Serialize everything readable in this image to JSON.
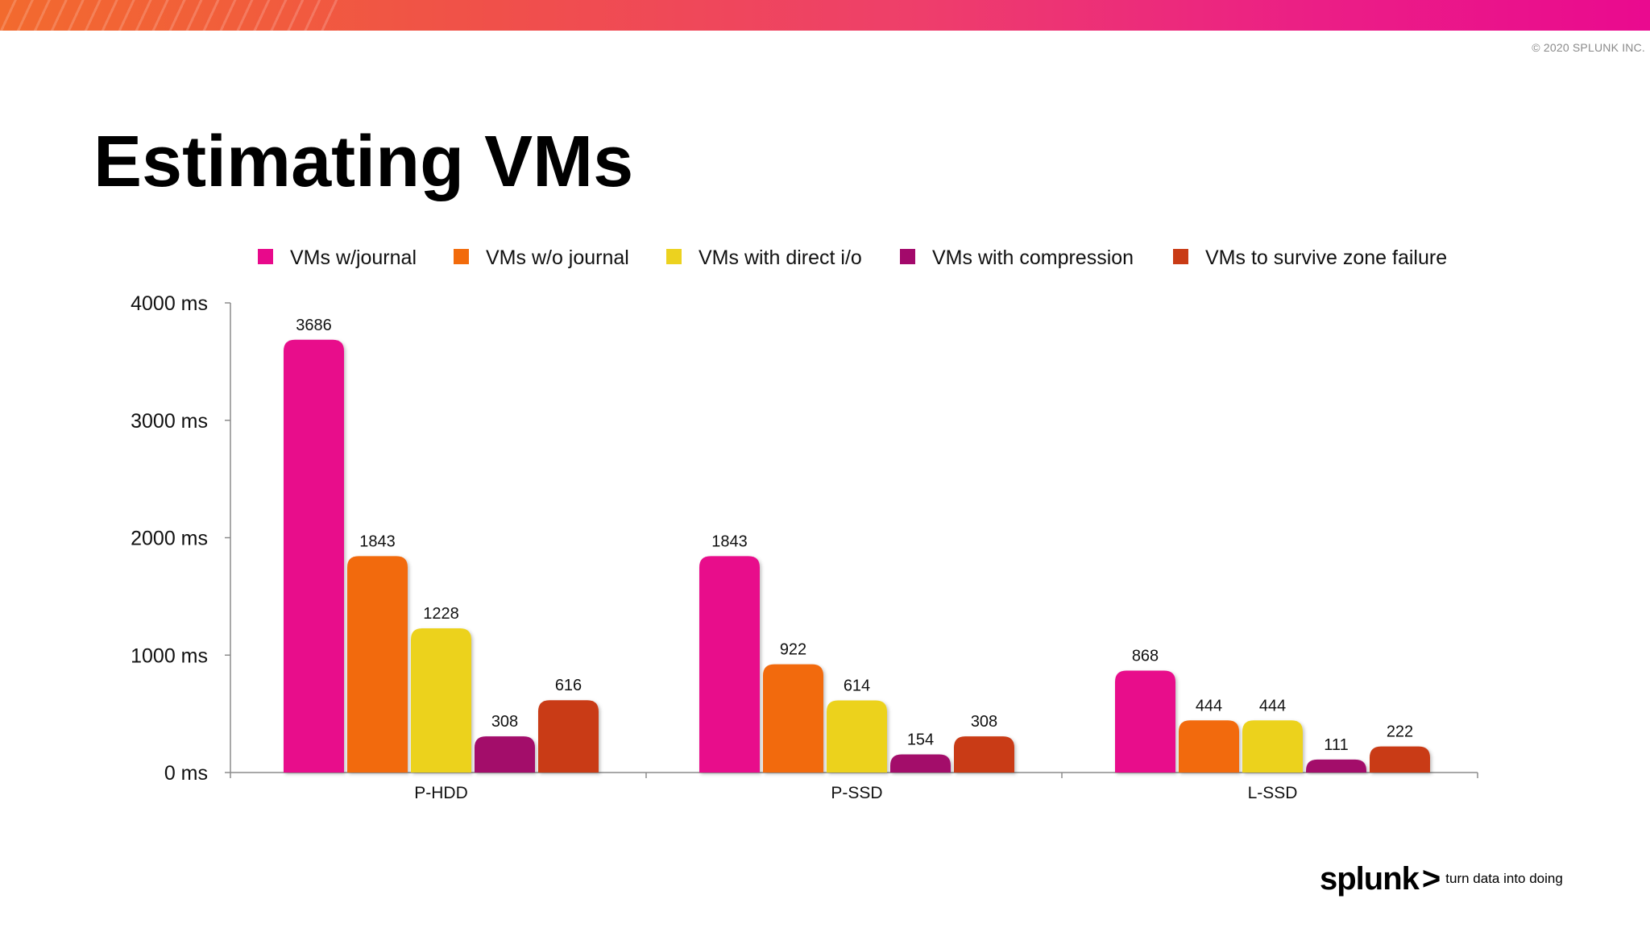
{
  "header": {
    "copyright": "© 2020 SPLUNK INC.",
    "title": "Estimating VMs"
  },
  "chart_data": {
    "type": "bar",
    "title": "",
    "xlabel": "",
    "ylabel": "",
    "ylim": [
      0,
      4000
    ],
    "yticks": [
      "0 ms",
      "1000 ms",
      "2000 ms",
      "3000 ms",
      "4000 ms"
    ],
    "ytick_values": [
      0,
      1000,
      2000,
      3000,
      4000
    ],
    "grid": false,
    "legend_position": "top",
    "categories": [
      "P-HDD",
      "P-SSD",
      "L-SSD"
    ],
    "series": [
      {
        "name": "VMs w/journal",
        "color": "#e8098b",
        "values": [
          3686,
          1843,
          868
        ]
      },
      {
        "name": "VMs w/o journal",
        "color": "#f26b0c",
        "values": [
          1843,
          922,
          444
        ]
      },
      {
        "name": "VMs with direct i/o",
        "color": "#ecd21f",
        "values": [
          1228,
          614,
          444
        ]
      },
      {
        "name": "VMs with compression",
        "color": "#a3096b",
        "values": [
          308,
          154,
          111
        ]
      },
      {
        "name": "VMs to survive zone failure",
        "color": "#c93b15",
        "values": [
          616,
          308,
          222
        ]
      }
    ]
  },
  "footer": {
    "logo_word": "splunk",
    "logo_chevron": ">",
    "tagline": "turn data into doing"
  }
}
